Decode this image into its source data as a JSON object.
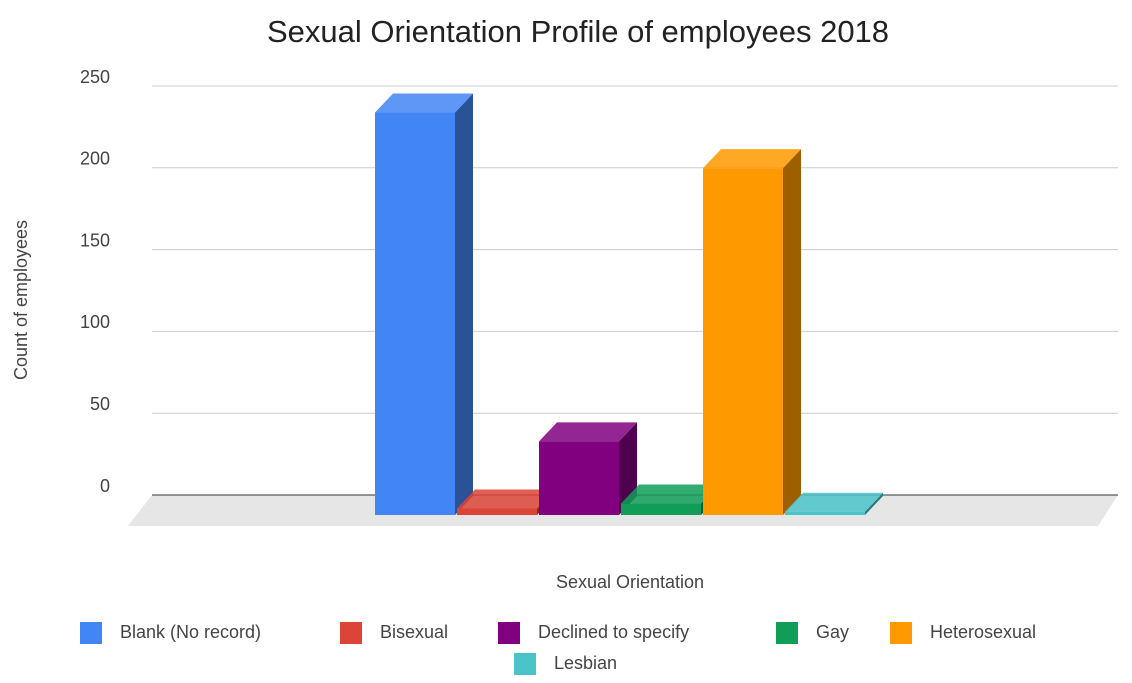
{
  "chart_data": {
    "type": "bar3d",
    "title": "Sexual Orientation Profile of employees 2018",
    "x_label": "Sexual Orientation",
    "y_label": "Count of employees",
    "series": [
      {
        "name": "Blank (No record)",
        "color": "#4285f4",
        "values": [
          246
        ]
      },
      {
        "name": "Bisexual",
        "color": "#db4437",
        "values": [
          4
        ]
      },
      {
        "name": "Declined to specify",
        "color": "#800080",
        "values": [
          45
        ]
      },
      {
        "name": "Gay",
        "color": "#0f9d58",
        "values": [
          7
        ]
      },
      {
        "name": "Heterosexual",
        "color": "#ff9900",
        "values": [
          212
        ]
      },
      {
        "name": "Lesbian",
        "color": "#4ac3c9",
        "values": [
          2
        ]
      }
    ],
    "ylim": [
      0,
      250
    ],
    "yticks": [
      0,
      50,
      100,
      150,
      200,
      250
    ],
    "grid": true
  }
}
